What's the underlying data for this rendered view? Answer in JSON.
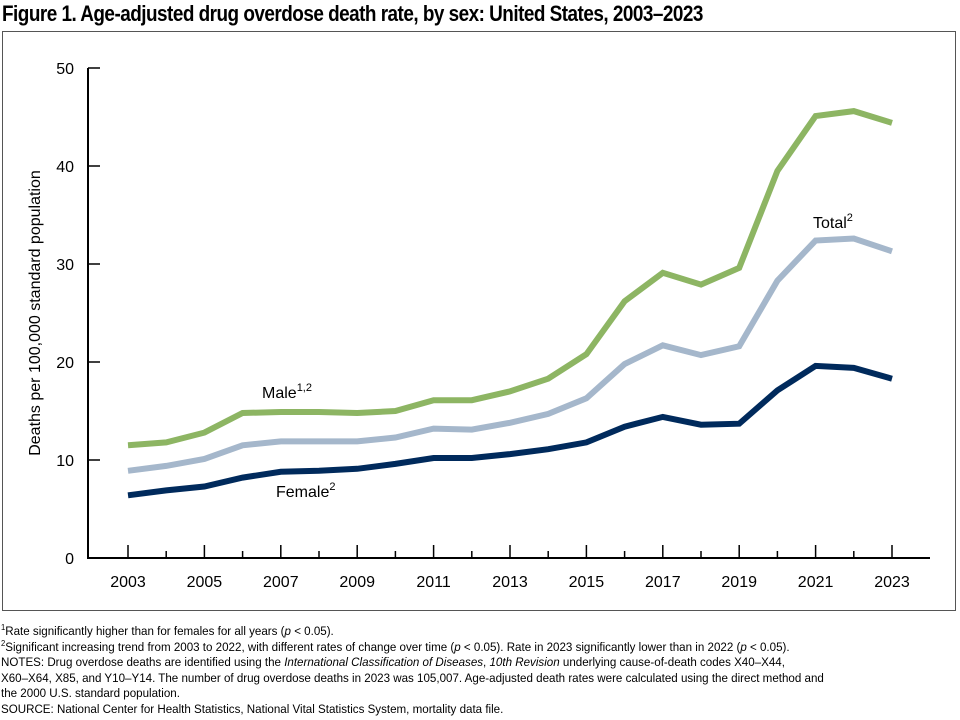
{
  "title": "Figure 1. Age-adjusted drug overdose death rate, by sex: United States, 2003–2023",
  "chart_data": {
    "type": "line",
    "title": "Figure 1. Age-adjusted drug overdose death rate, by sex: United States, 2003–2023",
    "xlabel": "",
    "ylabel": "Deaths per 100,000 standard population",
    "x": [
      2003,
      2004,
      2005,
      2006,
      2007,
      2008,
      2009,
      2010,
      2011,
      2012,
      2013,
      2014,
      2015,
      2016,
      2017,
      2018,
      2019,
      2020,
      2021,
      2022,
      2023
    ],
    "xticks": [
      "2003",
      "2005",
      "2007",
      "2009",
      "2011",
      "2013",
      "2015",
      "2017",
      "2019",
      "2021",
      "2023"
    ],
    "yticks": [
      "0",
      "10",
      "20",
      "30",
      "40",
      "50"
    ],
    "ylim": [
      0,
      50
    ],
    "grid": false,
    "series": [
      {
        "name": "Male",
        "label": "Male",
        "sup": "1,2",
        "color": "#8db563",
        "values": [
          11.5,
          11.8,
          12.8,
          14.8,
          14.9,
          14.9,
          14.8,
          15.0,
          16.1,
          16.1,
          17.0,
          18.3,
          20.8,
          26.2,
          29.1,
          27.9,
          29.6,
          39.5,
          45.1,
          45.6,
          44.4
        ]
      },
      {
        "name": "Total",
        "label": "Total",
        "sup": "2",
        "color": "#a5b7cb",
        "values": [
          8.9,
          9.4,
          10.1,
          11.5,
          11.9,
          11.9,
          11.9,
          12.3,
          13.2,
          13.1,
          13.8,
          14.7,
          16.3,
          19.8,
          21.7,
          20.7,
          21.6,
          28.3,
          32.4,
          32.6,
          31.3
        ]
      },
      {
        "name": "Female",
        "label": "Female",
        "sup": "2",
        "color": "#002a5c",
        "values": [
          6.4,
          6.9,
          7.3,
          8.2,
          8.8,
          8.9,
          9.1,
          9.6,
          10.2,
          10.2,
          10.6,
          11.1,
          11.8,
          13.4,
          14.4,
          13.6,
          13.7,
          17.1,
          19.6,
          19.4,
          18.3
        ]
      }
    ]
  },
  "notes": {
    "fn1_mark": "1",
    "fn1": "Rate significantly higher than for females for all years (",
    "fn1_p": "p",
    "fn1_end": " < 0.05).",
    "fn2_mark": "2",
    "fn2_a": "Significant increasing trend from 2003 to 2022, with different rates of change over time (",
    "fn2_p1": "p",
    "fn2_b": " < 0.05). Rate in 2023 significantly lower than in 2022 (",
    "fn2_p2": "p",
    "fn2_c": " < 0.05).",
    "notes_a": "NOTES: Drug overdose deaths are identified using the ",
    "notes_icd": "International Classification of Diseases",
    "notes_comma": ", ",
    "notes_rev": "10th Revision",
    "notes_b": " underlying cause-of-death codes X40–X44,",
    "notes_c": "X60–X64, X85, and Y10–Y14. The number of drug overdose deaths in 2023 was 105,007. Age-adjusted death rates were calculated using the direct method and",
    "notes_d": "the 2000 U.S. standard population.",
    "source": "SOURCE: National Center for Health Statistics, National Vital Statistics System, mortality data file."
  }
}
